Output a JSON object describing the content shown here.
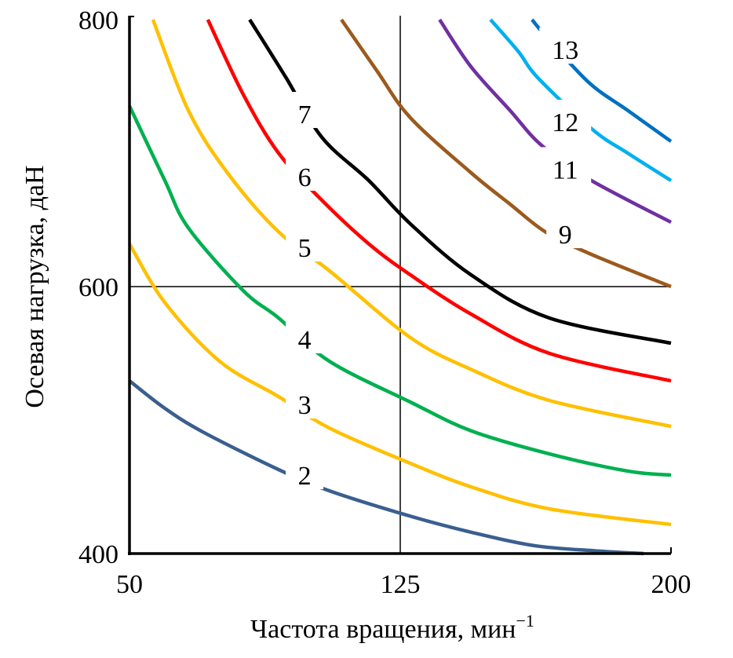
{
  "chart_data": {
    "type": "line",
    "title": "",
    "xlabel": "Частота вращения, мин",
    "xlabel_superscript": "−1",
    "ylabel": "Осевая нагрузка, даН",
    "xlim": [
      50,
      200
    ],
    "ylim": [
      400,
      800
    ],
    "xticks": [
      50,
      125,
      200
    ],
    "yticks": [
      400,
      600,
      800
    ],
    "grid": {
      "x": [
        125
      ],
      "y": [
        600
      ]
    },
    "series": [
      {
        "name": "2",
        "color": "#3a5f8f",
        "label_pos": [
          98.5,
          458.8
        ],
        "points": [
          [
            50,
            529.4
          ],
          [
            59.8,
            508.8
          ],
          [
            70.4,
            491
          ],
          [
            91.3,
            462.9
          ],
          [
            105.4,
            447
          ],
          [
            127.8,
            428
          ],
          [
            144.6,
            416
          ],
          [
            162,
            406
          ],
          [
            179.3,
            402
          ],
          [
            192.4,
            400
          ]
        ]
      },
      {
        "name": "3",
        "color": "#ffc000",
        "label_pos": [
          98.5,
          511.8
        ],
        "points": [
          [
            50,
            632
          ],
          [
            59.8,
            588
          ],
          [
            75,
            544
          ],
          [
            91.3,
            517.6
          ],
          [
            105.4,
            494
          ],
          [
            127.8,
            467.6
          ],
          [
            144.6,
            450
          ],
          [
            166.3,
            433.5
          ],
          [
            200,
            421.8
          ]
        ]
      },
      {
        "name": "4",
        "color": "#00b050",
        "label_pos": [
          98.5,
          560.6
        ],
        "points": [
          [
            50,
            735.3
          ],
          [
            59.8,
            679.4
          ],
          [
            66.3,
            644
          ],
          [
            81.5,
            597
          ],
          [
            91.3,
            576.5
          ],
          [
            105.4,
            544
          ],
          [
            127.8,
            513.5
          ],
          [
            144.6,
            492
          ],
          [
            166.3,
            474.7
          ],
          [
            188,
            461.8
          ],
          [
            200,
            458.8
          ]
        ]
      },
      {
        "name": "5",
        "color": "#ffc000",
        "label_pos": [
          98.5,
          629.4
        ],
        "points": [
          [
            56.5,
            800
          ],
          [
            66.3,
            732
          ],
          [
            77.2,
            685
          ],
          [
            91.3,
            641
          ],
          [
            105.4,
            611.8
          ],
          [
            127.8,
            561.8
          ],
          [
            144.6,
            538
          ],
          [
            166.3,
            514.7
          ],
          [
            200,
            495.3
          ]
        ]
      },
      {
        "name": "6",
        "color": "#ff0000",
        "label_pos": [
          98.5,
          682.4
        ],
        "points": [
          [
            71.7,
            800
          ],
          [
            81.5,
            744
          ],
          [
            91.3,
            700
          ],
          [
            103.3,
            664.7
          ],
          [
            116.3,
            632
          ],
          [
            127.8,
            608.8
          ],
          [
            144.6,
            579.4
          ],
          [
            166.3,
            550
          ],
          [
            200,
            529.4
          ]
        ]
      },
      {
        "name": "7",
        "color": "#000000",
        "label_pos": [
          98.5,
          729.4
        ],
        "points": [
          [
            83.3,
            800
          ],
          [
            93.5,
            755.9
          ],
          [
            103.3,
            711.8
          ],
          [
            116.3,
            679.4
          ],
          [
            127.8,
            647
          ],
          [
            144.6,
            608.8
          ],
          [
            166.3,
            576.5
          ],
          [
            200,
            557.6
          ]
        ]
      },
      {
        "name": "9",
        "color": "#9c5a1e",
        "label_pos": [
          170.7,
          639.4
        ],
        "points": [
          [
            108.7,
            800
          ],
          [
            118.5,
            761.8
          ],
          [
            127.8,
            726.5
          ],
          [
            144.6,
            685.3
          ],
          [
            155.4,
            661.8
          ],
          [
            165.2,
            641
          ],
          [
            177.2,
            625
          ],
          [
            200,
            600
          ]
        ]
      },
      {
        "name": "11",
        "color": "#7030a0",
        "label_pos": [
          170.7,
          688
        ],
        "points": [
          [
            135.9,
            800
          ],
          [
            144.6,
            764.7
          ],
          [
            155.4,
            732
          ],
          [
            164.1,
            705.9
          ],
          [
            177.2,
            680.6
          ],
          [
            200,
            648.2
          ]
        ]
      },
      {
        "name": "12",
        "color": "#00b0f0",
        "label_pos": [
          170.7,
          723.5
        ],
        "points": [
          [
            150,
            800
          ],
          [
            157.6,
            776.5
          ],
          [
            163.3,
            755.9
          ],
          [
            178.3,
            717.6
          ],
          [
            188,
            700
          ],
          [
            200,
            679.4
          ]
        ]
      },
      {
        "name": "13",
        "color": "#0070c0",
        "label_pos": [
          170.7,
          777.6
        ],
        "points": [
          [
            161.5,
            800
          ],
          [
            165.2,
            788
          ],
          [
            177.2,
            753
          ],
          [
            188,
            732
          ],
          [
            200,
            708.8
          ]
        ]
      }
    ]
  }
}
